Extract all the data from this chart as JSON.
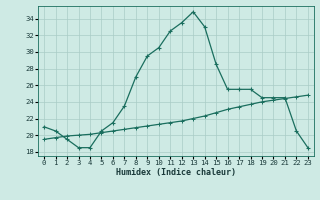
{
  "title": "",
  "xlabel": "Humidex (Indice chaleur)",
  "background_color": "#ceeae4",
  "line_color": "#1a6e5e",
  "grid_color": "#aaccc6",
  "ylim": [
    17.5,
    35.5
  ],
  "xlim": [
    -0.5,
    23.5
  ],
  "yticks": [
    18,
    20,
    22,
    24,
    26,
    28,
    30,
    32,
    34
  ],
  "xticks": [
    0,
    1,
    2,
    3,
    4,
    5,
    6,
    7,
    8,
    9,
    10,
    11,
    12,
    13,
    14,
    15,
    16,
    17,
    18,
    19,
    20,
    21,
    22,
    23
  ],
  "line1_x": [
    0,
    1,
    2,
    3,
    4,
    5,
    6,
    7,
    8,
    9,
    10,
    11,
    12,
    13,
    14,
    15,
    16,
    17,
    18,
    19,
    20,
    21,
    22,
    23
  ],
  "line1_y": [
    21.0,
    20.5,
    19.5,
    18.5,
    18.5,
    20.5,
    21.5,
    23.5,
    27.0,
    29.5,
    30.5,
    32.5,
    33.5,
    34.8,
    33.0,
    28.5,
    25.5,
    25.5,
    25.5,
    24.5,
    24.5,
    24.5,
    20.5,
    18.5
  ],
  "line2_x": [
    0,
    1,
    2,
    3,
    4,
    5,
    6,
    7,
    8,
    9,
    10,
    11,
    12,
    13,
    14,
    15,
    16,
    17,
    18,
    19,
    20,
    21,
    22,
    23
  ],
  "line2_y": [
    19.5,
    19.7,
    19.9,
    20.0,
    20.1,
    20.3,
    20.5,
    20.7,
    20.9,
    21.1,
    21.3,
    21.5,
    21.7,
    22.0,
    22.3,
    22.7,
    23.1,
    23.4,
    23.7,
    24.0,
    24.2,
    24.4,
    24.6,
    24.8
  ]
}
